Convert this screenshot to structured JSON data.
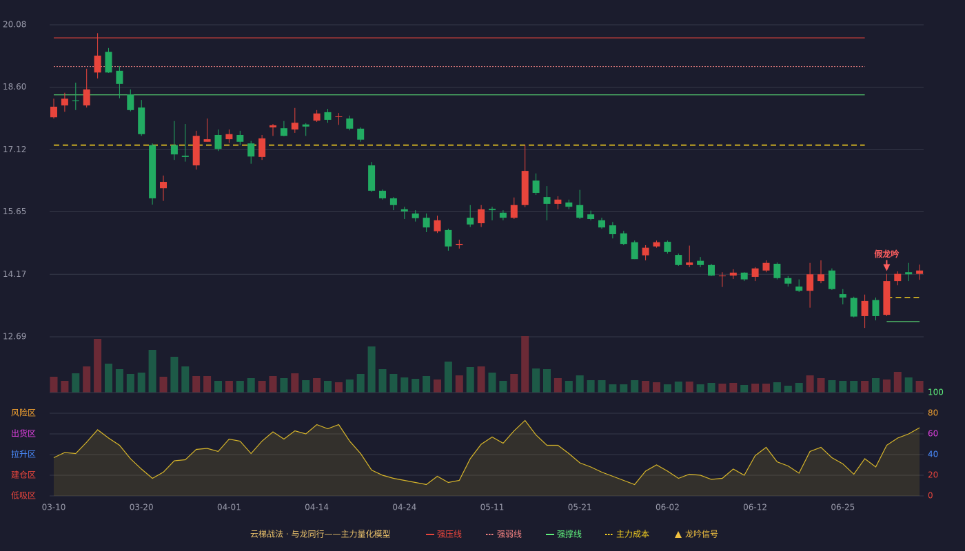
{
  "chart_data": {
    "type": "candlestick",
    "title": "云梯战法 · 与龙同行——主力量化模型",
    "title_color": "#e8c06a",
    "categories": [
      "03-10",
      null,
      null,
      null,
      null,
      null,
      null,
      null,
      "03-20",
      null,
      null,
      null,
      null,
      null,
      null,
      null,
      "04-01",
      null,
      null,
      null,
      null,
      null,
      null,
      null,
      "04-14",
      null,
      null,
      null,
      null,
      null,
      null,
      null,
      "04-24",
      null,
      null,
      null,
      null,
      null,
      null,
      null,
      "05-11",
      null,
      null,
      null,
      null,
      null,
      null,
      null,
      "05-21",
      null,
      null,
      null,
      null,
      null,
      null,
      null,
      "06-02",
      null,
      null,
      null,
      null,
      null,
      null,
      null,
      "06-12",
      null,
      null,
      null,
      null,
      null,
      null,
      null,
      "06-25",
      null,
      null,
      null,
      null,
      null,
      null,
      null
    ],
    "open": [
      17.89,
      18.17,
      18.29,
      18.17,
      18.95,
      19.44,
      18.99,
      18.43,
      18.12,
      17.23,
      16.21,
      17.23,
      16.98,
      16.75,
      17.31,
      17.47,
      17.37,
      17.47,
      17.27,
      16.95,
      17.65,
      17.63,
      17.6,
      17.72,
      17.81,
      18.01,
      17.9,
      17.86,
      17.62,
      16.75,
      16.15,
      15.97,
      15.71,
      15.61,
      15.51,
      15.19,
      15.22,
      14.86,
      15.51,
      15.38,
      15.72,
      15.63,
      15.51,
      15.81,
      16.39,
      16.0,
      15.84,
      15.87,
      15.81,
      15.59,
      15.45,
      15.33,
      15.14,
      14.93,
      14.62,
      14.83,
      14.94,
      14.63,
      14.39,
      14.49,
      14.39,
      14.13,
      14.14,
      14.21,
      14.11,
      14.26,
      14.42,
      14.08,
      13.88,
      13.78,
      14.01,
      14.26,
      13.7,
      13.61,
      13.18,
      13.56,
      13.21,
      14.01,
      14.22,
      14.18
    ],
    "high": [
      18.33,
      18.47,
      18.71,
      19.04,
      19.88,
      19.53,
      19.1,
      18.55,
      18.3,
      17.27,
      16.51,
      17.8,
      17.73,
      17.57,
      17.86,
      17.6,
      17.6,
      17.57,
      17.33,
      17.47,
      17.73,
      17.8,
      18.11,
      17.75,
      18.06,
      18.09,
      17.99,
      17.93,
      17.65,
      16.83,
      16.18,
      16.0,
      15.77,
      15.69,
      15.61,
      15.56,
      15.25,
      14.99,
      15.81,
      15.81,
      15.77,
      15.69,
      15.99,
      17.23,
      16.56,
      16.26,
      16.02,
      15.94,
      16.17,
      15.68,
      15.51,
      15.41,
      15.2,
      14.97,
      14.86,
      14.97,
      14.97,
      14.66,
      14.85,
      14.58,
      14.42,
      14.22,
      14.29,
      14.22,
      14.34,
      14.5,
      14.45,
      14.13,
      14.05,
      14.44,
      14.5,
      14.31,
      13.82,
      13.64,
      13.69,
      13.62,
      14.18,
      14.24,
      14.44,
      14.4
    ],
    "low": [
      17.86,
      18.02,
      18.06,
      18.12,
      18.81,
      18.94,
      18.34,
      18.03,
      17.45,
      15.82,
      15.91,
      16.88,
      16.84,
      16.65,
      17.31,
      17.09,
      17.28,
      17.23,
      16.79,
      16.88,
      17.45,
      17.44,
      17.52,
      17.45,
      17.78,
      17.76,
      17.71,
      17.58,
      17.31,
      16.12,
      15.94,
      15.69,
      15.48,
      15.42,
      15.17,
      15.15,
      14.73,
      14.78,
      15.29,
      15.29,
      15.45,
      15.45,
      15.48,
      15.76,
      16.05,
      15.45,
      15.71,
      15.71,
      15.48,
      15.45,
      15.25,
      15.02,
      14.86,
      14.53,
      14.5,
      14.8,
      14.66,
      14.37,
      14.34,
      14.34,
      14.13,
      13.87,
      14.06,
      14.01,
      14.01,
      14.22,
      14.05,
      13.88,
      13.75,
      13.38,
      13.96,
      13.8,
      13.46,
      13.15,
      12.9,
      13.08,
      13.18,
      13.91,
      14.01,
      14.04
    ],
    "close": [
      18.14,
      18.33,
      18.27,
      18.55,
      19.35,
      18.95,
      18.68,
      18.06,
      17.49,
      15.97,
      16.36,
      17.01,
      16.95,
      17.45,
      17.37,
      17.14,
      17.49,
      17.31,
      16.96,
      17.39,
      17.7,
      17.45,
      17.76,
      17.67,
      17.98,
      17.83,
      17.91,
      17.62,
      17.36,
      16.15,
      15.97,
      15.81,
      15.66,
      15.5,
      15.28,
      15.45,
      14.83,
      14.89,
      15.35,
      15.71,
      15.69,
      15.51,
      15.81,
      16.62,
      16.1,
      15.84,
      15.94,
      15.77,
      15.51,
      15.48,
      15.28,
      15.12,
      14.89,
      14.53,
      14.8,
      14.93,
      14.7,
      14.39,
      14.45,
      14.39,
      14.14,
      14.14,
      14.21,
      14.05,
      14.31,
      14.44,
      14.08,
      13.95,
      13.78,
      14.17,
      14.17,
      13.82,
      13.62,
      13.17,
      13.54,
      13.18,
      14.01,
      14.18,
      14.17,
      14.26
    ],
    "up_color": "#e8453c",
    "down_color": "#22ab62",
    "ylim": [
      12.69,
      20.08
    ],
    "yticks": [
      20.08,
      {
        "value": 18.6,
        "label": "18.60"
      },
      17.12,
      15.65,
      14.17,
      12.69
    ],
    "grid": true,
    "lines": [
      {
        "name": "强压线",
        "color": "#e8453c",
        "style": "solid",
        "values": [
          19.77,
          19.77,
          19.77,
          19.77,
          19.77,
          19.77,
          19.77,
          19.77,
          19.77,
          19.77,
          19.77,
          19.77,
          19.77,
          19.77,
          19.77,
          19.77,
          19.77,
          19.77,
          19.77,
          19.77,
          19.77,
          19.77,
          19.77,
          19.77,
          19.77,
          19.77,
          19.77,
          19.77,
          19.77,
          19.77,
          19.77,
          19.77,
          19.77,
          19.77,
          19.77,
          19.77,
          19.77,
          19.77,
          19.77,
          19.77,
          19.77,
          19.77,
          19.77,
          19.77,
          19.77,
          19.77,
          19.77,
          19.77,
          19.77,
          19.77,
          19.77,
          19.77,
          19.77,
          19.77,
          19.77,
          19.77,
          19.77,
          19.77,
          19.77,
          19.77,
          19.77,
          19.77,
          19.77,
          19.77,
          19.77,
          19.77,
          19.77,
          19.77,
          19.77,
          19.77,
          19.77,
          19.77,
          19.77,
          19.77,
          19.77,
          null,
          null,
          null,
          null,
          null
        ]
      },
      {
        "name": "强弱线",
        "color": "#f08080",
        "style": "dotted",
        "values": [
          19.09,
          19.09,
          19.09,
          19.09,
          19.09,
          19.09,
          19.09,
          19.09,
          19.09,
          19.09,
          19.09,
          19.09,
          19.09,
          19.09,
          19.09,
          19.09,
          19.09,
          19.09,
          19.09,
          19.09,
          19.09,
          19.09,
          19.09,
          19.09,
          19.09,
          19.09,
          19.09,
          19.09,
          19.09,
          19.09,
          19.09,
          19.09,
          19.09,
          19.09,
          19.09,
          19.09,
          19.09,
          19.09,
          19.09,
          19.09,
          19.09,
          19.09,
          19.09,
          19.09,
          19.09,
          19.09,
          19.09,
          19.09,
          19.09,
          19.09,
          19.09,
          19.09,
          19.09,
          19.09,
          19.09,
          19.09,
          19.09,
          19.09,
          19.09,
          19.09,
          19.09,
          19.09,
          19.09,
          19.09,
          19.09,
          19.09,
          19.09,
          19.09,
          19.09,
          19.09,
          19.09,
          19.09,
          19.09,
          19.09,
          19.09,
          null,
          null,
          null,
          null,
          null
        ]
      },
      {
        "name": "强撑线",
        "color": "#5ff07d",
        "style": "solid",
        "values": [
          18.42,
          18.42,
          18.42,
          18.42,
          18.42,
          18.42,
          18.42,
          18.42,
          18.42,
          18.42,
          18.42,
          18.42,
          18.42,
          18.42,
          18.42,
          18.42,
          18.42,
          18.42,
          18.42,
          18.42,
          18.42,
          18.42,
          18.42,
          18.42,
          18.42,
          18.42,
          18.42,
          18.42,
          18.42,
          18.42,
          18.42,
          18.42,
          18.42,
          18.42,
          18.42,
          18.42,
          18.42,
          18.42,
          18.42,
          18.42,
          18.42,
          18.42,
          18.42,
          18.42,
          18.42,
          18.42,
          18.42,
          18.42,
          18.42,
          18.42,
          18.42,
          18.42,
          18.42,
          18.42,
          18.42,
          18.42,
          18.42,
          18.42,
          18.42,
          18.42,
          18.42,
          18.42,
          18.42,
          18.42,
          18.42,
          18.42,
          18.42,
          18.42,
          18.42,
          18.42,
          18.42,
          18.42,
          18.42,
          18.42,
          18.42,
          null,
          13.05,
          13.05,
          13.05,
          13.05
        ]
      },
      {
        "name": "主力成本",
        "color": "#f5d020",
        "style": "dashed",
        "values": [
          17.23,
          17.23,
          17.23,
          17.23,
          17.23,
          17.23,
          17.23,
          17.23,
          17.23,
          17.23,
          17.23,
          17.23,
          17.23,
          17.23,
          17.23,
          17.23,
          17.23,
          17.23,
          17.23,
          17.23,
          17.23,
          17.23,
          17.23,
          17.23,
          17.23,
          17.23,
          17.23,
          17.23,
          17.23,
          17.23,
          17.23,
          17.23,
          17.23,
          17.23,
          17.23,
          17.23,
          17.23,
          17.23,
          17.23,
          17.23,
          17.23,
          17.23,
          17.23,
          17.23,
          17.23,
          17.23,
          17.23,
          17.23,
          17.23,
          17.23,
          17.23,
          17.23,
          17.23,
          17.23,
          17.23,
          17.23,
          17.23,
          17.23,
          17.23,
          17.23,
          17.23,
          17.23,
          17.23,
          17.23,
          17.23,
          17.23,
          17.23,
          17.23,
          17.23,
          17.23,
          17.23,
          17.23,
          17.23,
          17.23,
          17.23,
          null,
          13.62,
          13.62,
          13.62,
          13.62
        ]
      }
    ],
    "signal": {
      "name": "龙吟信号",
      "label": "假龙吟",
      "index": 76,
      "color": "#ff5f5f",
      "legend_color": "#f0c040"
    },
    "volume": {
      "ylim": [
        0,
        82
      ],
      "up_color": "#6b2a36",
      "down_color": "#1d5a47",
      "values": [
        23,
        17,
        28,
        38,
        78,
        42,
        34,
        27,
        29,
        62,
        23,
        52,
        38,
        24,
        24,
        17,
        17,
        17,
        21,
        17,
        24,
        21,
        28,
        18,
        21,
        17,
        15,
        19,
        27,
        67,
        34,
        27,
        22,
        20,
        24,
        19,
        45,
        25,
        37,
        38,
        29,
        17,
        27,
        82,
        35,
        34,
        21,
        17,
        25,
        18,
        18,
        12,
        12,
        18,
        17,
        15,
        12,
        16,
        16,
        12,
        14,
        13,
        14,
        11,
        13,
        13,
        15,
        10,
        14,
        25,
        21,
        18,
        17,
        17,
        17,
        21,
        19,
        30,
        22,
        17
      ]
    },
    "indicator": {
      "ylim": [
        0,
        100
      ],
      "yticks": [
        0,
        20,
        40,
        60,
        80,
        100
      ],
      "ytick_colors": [
        "#e8453c",
        "#e8453c",
        "#4a8cff",
        "#e040e0",
        "#f0a030",
        "#5ff07d"
      ],
      "zones": [
        {
          "label": "风险区",
          "value": 80,
          "color": "#f0a030"
        },
        {
          "label": "出货区",
          "value": 60,
          "color": "#e040e0"
        },
        {
          "label": "拉升区",
          "value": 40,
          "color": "#4a8cff"
        },
        {
          "label": "建仓区",
          "value": 20,
          "color": "#e8453c"
        },
        {
          "label": "低吸区",
          "value": 0,
          "color": "#e8453c"
        }
      ],
      "color": "#d8b62a",
      "values": [
        37,
        42,
        41,
        52,
        64,
        56,
        49,
        36,
        26,
        17,
        23,
        34,
        35,
        45,
        46,
        43,
        55,
        53,
        41,
        53,
        62,
        55,
        63,
        60,
        69,
        65,
        69,
        53,
        41,
        25,
        20,
        17,
        15,
        13,
        11,
        19,
        13,
        15,
        36,
        50,
        57,
        51,
        63,
        73,
        59,
        49,
        49,
        41,
        32,
        28,
        23,
        19,
        15,
        11,
        24,
        30,
        24,
        17,
        21,
        20,
        16,
        17,
        26,
        20,
        39,
        47,
        33,
        29,
        22,
        43,
        47,
        37,
        31,
        21,
        36,
        28,
        49,
        56,
        60,
        66
      ]
    }
  }
}
